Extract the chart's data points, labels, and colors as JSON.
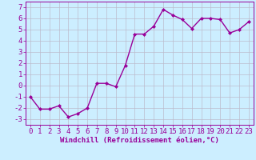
{
  "x": [
    0,
    1,
    2,
    3,
    4,
    5,
    6,
    7,
    8,
    9,
    10,
    11,
    12,
    13,
    14,
    15,
    16,
    17,
    18,
    19,
    20,
    21,
    22,
    23
  ],
  "y": [
    -1,
    -2.1,
    -2.1,
    -1.8,
    -2.8,
    -2.5,
    -2.0,
    0.2,
    0.2,
    -0.1,
    1.8,
    4.6,
    4.6,
    5.3,
    6.8,
    6.3,
    5.9,
    5.1,
    6.0,
    6.0,
    5.9,
    4.7,
    5.0,
    5.7
  ],
  "line_color": "#990099",
  "marker": "D",
  "marker_size": 2.0,
  "bg_color": "#cceeff",
  "grid_color": "#bbbbcc",
  "xlabel": "Windchill (Refroidissement éolien,°C)",
  "xlim": [
    -0.5,
    23.5
  ],
  "ylim": [
    -3.5,
    7.5
  ],
  "yticks": [
    -3,
    -2,
    -1,
    0,
    1,
    2,
    3,
    4,
    5,
    6,
    7
  ],
  "xticks": [
    0,
    1,
    2,
    3,
    4,
    5,
    6,
    7,
    8,
    9,
    10,
    11,
    12,
    13,
    14,
    15,
    16,
    17,
    18,
    19,
    20,
    21,
    22,
    23
  ],
  "tick_color": "#990099",
  "label_color": "#990099",
  "spine_color": "#990099",
  "font_size": 6.5,
  "xlabel_fontsize": 6.5,
  "linewidth": 1.0
}
